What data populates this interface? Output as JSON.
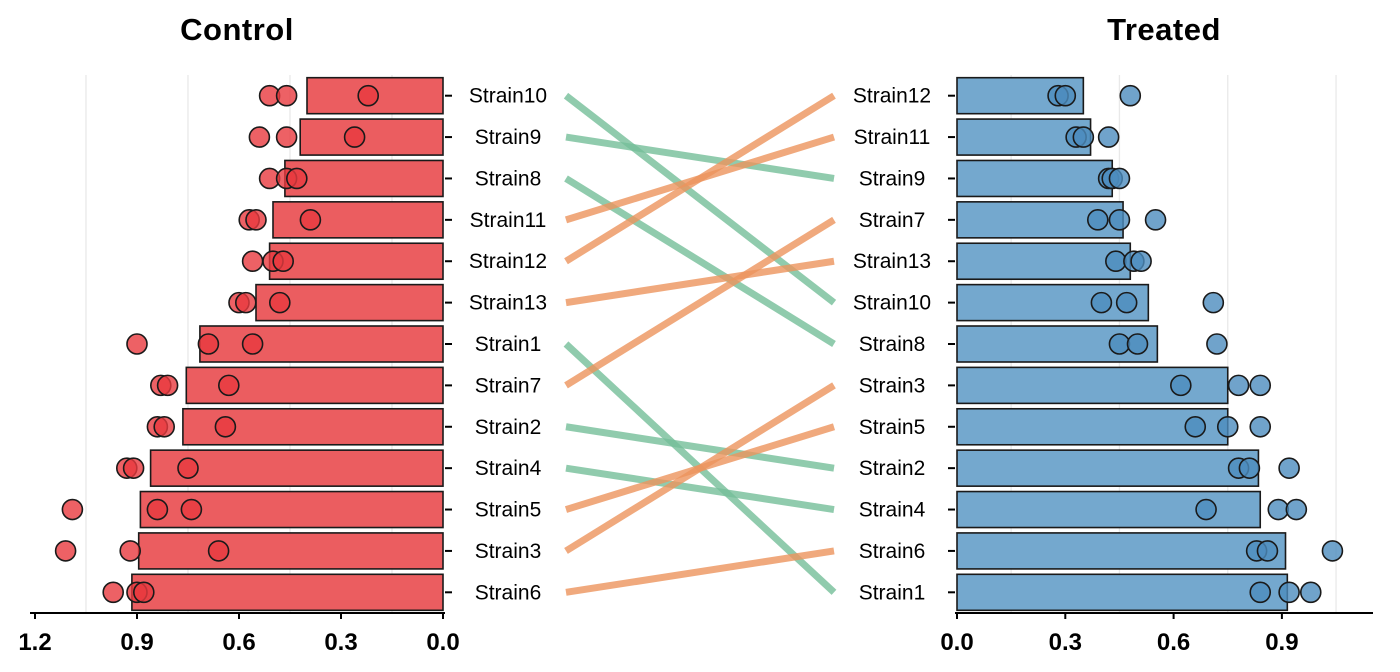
{
  "titles": {
    "left": "Control",
    "right": "Treated"
  },
  "chart_data": {
    "type": "bar",
    "layout": "paired horizontal bar panels (Control reversed axis, Treated normal axis) with jittered replicate points and rank-change bump lines between panels",
    "axis_range": [
      0,
      1.2
    ],
    "grid_minor": [
      0.15,
      0.45,
      0.75,
      1.05
    ],
    "panels": {
      "left": {
        "title": "Control",
        "direction": "right-to-left",
        "axis_tick_labels": [
          "1.2",
          "0.9",
          "0.6",
          "0.3",
          "0.0"
        ],
        "axis_tick_values": [
          1.2,
          0.9,
          0.6,
          0.3,
          0.0
        ],
        "order": [
          "Strain10",
          "Strain9",
          "Strain8",
          "Strain11",
          "Strain12",
          "Strain13",
          "Strain1",
          "Strain7",
          "Strain2",
          "Strain4",
          "Strain5",
          "Strain3",
          "Strain6"
        ]
      },
      "right": {
        "title": "Treated",
        "direction": "left-to-right",
        "axis_tick_labels": [
          "0.0",
          "0.3",
          "0.6",
          "0.9"
        ],
        "axis_tick_values": [
          0.0,
          0.3,
          0.6,
          0.9
        ],
        "order": [
          "Strain12",
          "Strain11",
          "Strain9",
          "Strain7",
          "Strain13",
          "Strain10",
          "Strain8",
          "Strain3",
          "Strain5",
          "Strain2",
          "Strain4",
          "Strain6",
          "Strain1"
        ]
      }
    },
    "strains": [
      {
        "name": "Strain10",
        "control_mean": 0.4,
        "control_points": [
          0.51,
          0.46,
          0.22
        ],
        "treated_mean": 0.53,
        "treated_points": [
          0.4,
          0.47,
          0.71
        ],
        "trend": "down"
      },
      {
        "name": "Strain9",
        "control_mean": 0.42,
        "control_points": [
          0.54,
          0.46,
          0.26
        ],
        "treated_mean": 0.43,
        "treated_points": [
          0.42,
          0.43,
          0.45
        ],
        "trend": "down"
      },
      {
        "name": "Strain8",
        "control_mean": 0.465,
        "control_points": [
          0.51,
          0.46,
          0.43
        ],
        "treated_mean": 0.555,
        "treated_points": [
          0.45,
          0.5,
          0.72
        ],
        "trend": "down"
      },
      {
        "name": "Strain11",
        "control_mean": 0.5,
        "control_points": [
          0.57,
          0.55,
          0.39
        ],
        "treated_mean": 0.37,
        "treated_points": [
          0.33,
          0.35,
          0.42
        ],
        "trend": "up"
      },
      {
        "name": "Strain12",
        "control_mean": 0.51,
        "control_points": [
          0.56,
          0.5,
          0.47
        ],
        "treated_mean": 0.35,
        "treated_points": [
          0.28,
          0.3,
          0.48
        ],
        "trend": "up"
      },
      {
        "name": "Strain13",
        "control_mean": 0.55,
        "control_points": [
          0.6,
          0.58,
          0.48
        ],
        "treated_mean": 0.48,
        "treated_points": [
          0.44,
          0.49,
          0.51
        ],
        "trend": "up"
      },
      {
        "name": "Strain1",
        "control_mean": 0.715,
        "control_points": [
          0.9,
          0.69,
          0.56
        ],
        "treated_mean": 0.915,
        "treated_points": [
          0.84,
          0.92,
          0.98
        ],
        "trend": "down"
      },
      {
        "name": "Strain7",
        "control_mean": 0.755,
        "control_points": [
          0.83,
          0.81,
          0.63
        ],
        "treated_mean": 0.46,
        "treated_points": [
          0.39,
          0.45,
          0.55
        ],
        "trend": "up"
      },
      {
        "name": "Strain2",
        "control_mean": 0.765,
        "control_points": [
          0.84,
          0.82,
          0.64
        ],
        "treated_mean": 0.835,
        "treated_points": [
          0.78,
          0.81,
          0.92
        ],
        "trend": "down"
      },
      {
        "name": "Strain4",
        "control_mean": 0.86,
        "control_points": [
          0.93,
          0.91,
          0.75
        ],
        "treated_mean": 0.84,
        "treated_points": [
          0.69,
          0.89,
          0.94
        ],
        "trend": "down"
      },
      {
        "name": "Strain5",
        "control_mean": 0.89,
        "control_points": [
          1.09,
          0.84,
          0.74
        ],
        "treated_mean": 0.75,
        "treated_points": [
          0.66,
          0.75,
          0.84
        ],
        "trend": "up"
      },
      {
        "name": "Strain3",
        "control_mean": 0.895,
        "control_points": [
          1.11,
          0.92,
          0.66
        ],
        "treated_mean": 0.75,
        "treated_points": [
          0.62,
          0.78,
          0.84
        ],
        "trend": "up"
      },
      {
        "name": "Strain6",
        "control_mean": 0.915,
        "control_points": [
          0.97,
          0.9,
          0.88
        ],
        "treated_mean": 0.91,
        "treated_points": [
          0.83,
          0.86,
          1.04
        ],
        "trend": "up"
      }
    ],
    "colors": {
      "control_bar": "#EB5D60",
      "control_dot": "#E93A3F",
      "treated_bar": "#74A8CE",
      "treated_dot": "#4C8CBE",
      "link_up": "#EC945D",
      "link_down": "#74BE98",
      "outline": "#1A1A1A",
      "grid": "#E9E9E9",
      "axis": "#000000"
    }
  }
}
